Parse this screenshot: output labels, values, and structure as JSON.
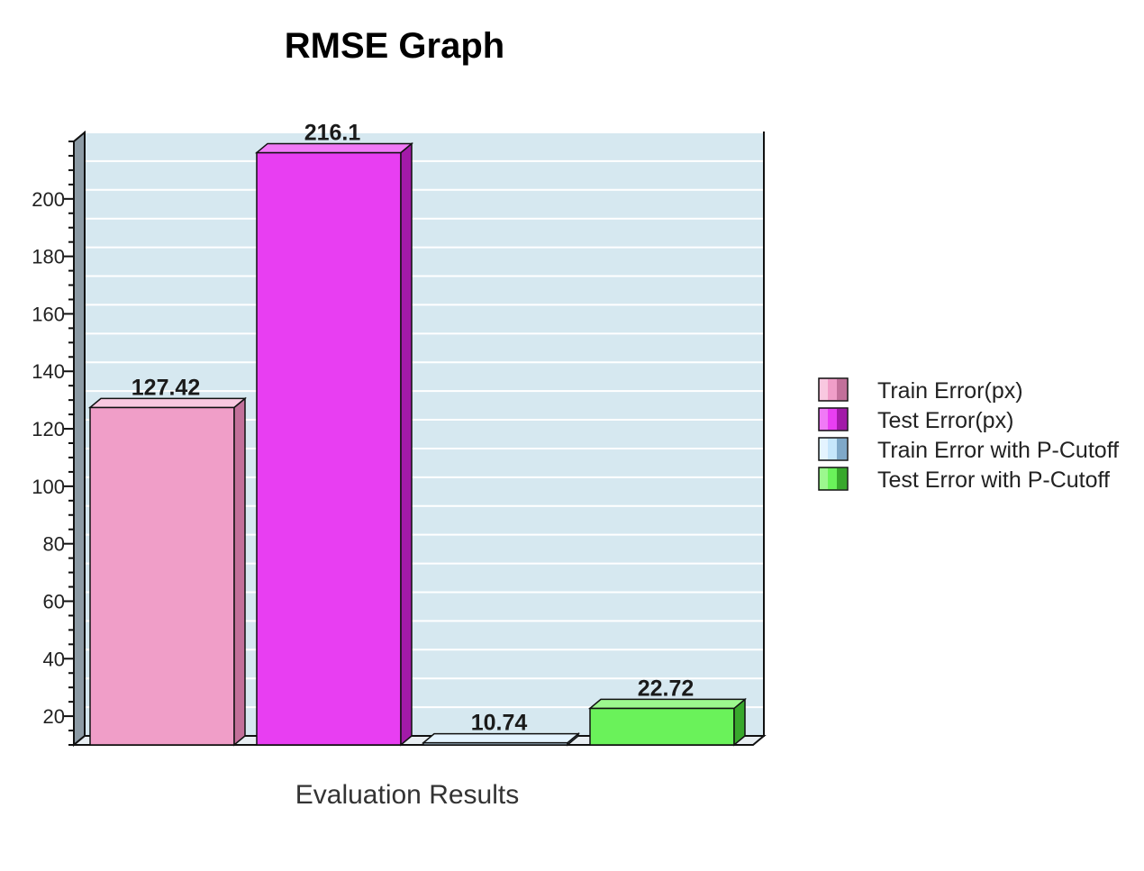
{
  "chart_data": {
    "type": "bar",
    "title": "RMSE Graph",
    "xlabel": "Evaluation Results",
    "ylabel": "",
    "ylim": [
      10,
      220
    ],
    "yticks": [
      20,
      40,
      60,
      80,
      100,
      120,
      140,
      160,
      180,
      200
    ],
    "grid": true,
    "style": "3d",
    "legend_position": "right",
    "series": [
      {
        "name": "Train Error(px)",
        "value": 127.42,
        "label": "127.42",
        "color": "#f09ec8",
        "side_color": "#c2709a",
        "top_color": "#f9c8e0"
      },
      {
        "name": "Test Error(px)",
        "value": 216.1,
        "label": "216.1",
        "color": "#e83ef2",
        "side_color": "#a21aa8",
        "top_color": "#f07af6"
      },
      {
        "name": "Train Error with P-Cutoff",
        "value": 10.74,
        "label": "10.74",
        "color": "#c6e6fb",
        "side_color": "#7fa8c8",
        "top_color": "#e4f4ff"
      },
      {
        "name": "Test Error with P-Cutoff",
        "value": 22.72,
        "label": "22.72",
        "color": "#6af25a",
        "side_color": "#38a82c",
        "top_color": "#9cf88e"
      }
    ],
    "colors": {
      "plot_background": "#d6e8f0",
      "grid_line": "#ffffff",
      "axis_wall": "#8c9aa4",
      "outline": "#111111"
    }
  }
}
